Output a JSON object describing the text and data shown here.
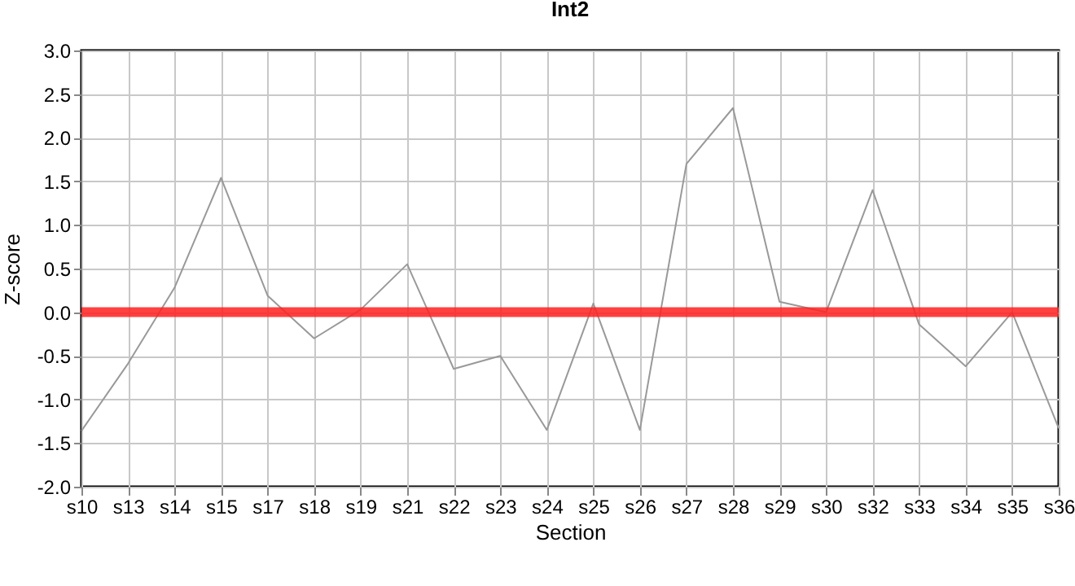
{
  "chart_data": {
    "type": "line",
    "title": "Int2",
    "xlabel": "Section",
    "ylabel": "Z-score",
    "categories": [
      "s10",
      "s13",
      "s14",
      "s15",
      "s17",
      "s18",
      "s19",
      "s21",
      "s22",
      "s23",
      "s24",
      "s25",
      "s26",
      "s27",
      "s28",
      "s29",
      "s30",
      "s32",
      "s33",
      "s34",
      "s35",
      "s36"
    ],
    "series": [
      {
        "color": "#999999",
        "values": [
          -1.36,
          -0.59,
          0.28,
          1.54,
          0.19,
          -0.3,
          0.03,
          0.55,
          -0.65,
          -0.5,
          -1.35,
          0.1,
          -1.35,
          1.7,
          2.34,
          0.12,
          0.0,
          1.4,
          -0.14,
          -0.62,
          0.0,
          -1.33
        ]
      }
    ],
    "ylim": [
      -2,
      3
    ],
    "yticks": [
      {
        "value": -2,
        "label": "-2.0"
      },
      {
        "value": -1.5,
        "label": "-1.5"
      },
      {
        "value": -1,
        "label": "-1.0"
      },
      {
        "value": -0.5,
        "label": "-0.5"
      },
      {
        "value": 0,
        "label": "0.0"
      },
      {
        "value": 0.5,
        "label": "0.5"
      },
      {
        "value": 1,
        "label": "1.0"
      },
      {
        "value": 1.5,
        "label": "1.5"
      },
      {
        "value": 2,
        "label": "2.0"
      },
      {
        "value": 2.5,
        "label": "2.5"
      },
      {
        "value": 3,
        "label": "3.0"
      }
    ],
    "ref_lines": [
      {
        "axis": "y",
        "value": 0,
        "color": "#ff2020"
      }
    ],
    "grid": true,
    "marker": "none",
    "line_style": "solid"
  }
}
